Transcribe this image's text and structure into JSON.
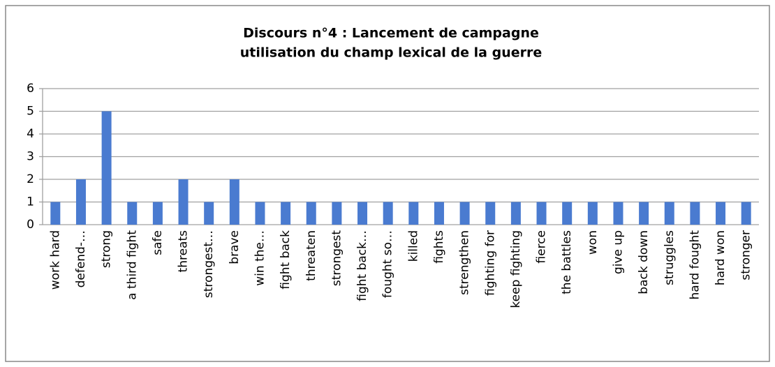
{
  "chart_data": {
    "type": "bar",
    "title": [
      "Discours n°4 : Lancement de campagne",
      "utilisation du champ lexical de la guerre"
    ],
    "categories": [
      "work hard",
      "defend-…",
      "strong",
      "a third fight",
      "safe",
      "threats",
      "strongest…",
      "brave",
      "win the…",
      "fight back",
      "threaten",
      "strongest",
      "fight back…",
      "fought so…",
      "killed",
      "fights",
      "strengthen",
      "fighting for",
      "keep fighting",
      "fierce",
      "the battles",
      "won",
      "give up",
      "back down",
      "struggles",
      "hard fought",
      "hard won",
      "stronger"
    ],
    "values": [
      1,
      2,
      5,
      1,
      1,
      2,
      1,
      2,
      1,
      1,
      1,
      1,
      1,
      1,
      1,
      1,
      1,
      1,
      1,
      1,
      1,
      1,
      1,
      1,
      1,
      1,
      1,
      1
    ],
    "color": "#4a7bd0",
    "ylim": [
      0,
      6
    ],
    "yticks": [
      0,
      1,
      2,
      3,
      4,
      5,
      6
    ],
    "grid": true
  }
}
